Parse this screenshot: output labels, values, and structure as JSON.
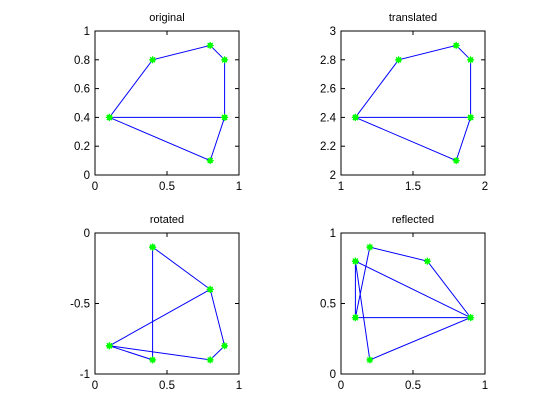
{
  "chart_data": [
    {
      "type": "line",
      "title": "original",
      "xlim": [
        0,
        1
      ],
      "ylim": [
        0,
        1
      ],
      "xticks": [
        0,
        0.5,
        1
      ],
      "xtick_labels": [
        "0",
        "0.5",
        "1"
      ],
      "yticks": [
        0,
        0.2,
        0.4,
        0.6,
        0.8,
        1
      ],
      "ytick_labels": [
        "0",
        "0.2",
        "0.4",
        "0.6",
        "0.8",
        "1"
      ],
      "x": [
        0.1,
        0.4,
        0.8,
        0.9,
        0.9,
        0.8,
        0.1,
        0.9,
        0.1
      ],
      "y": [
        0.4,
        0.8,
        0.9,
        0.8,
        0.4,
        0.1,
        0.4,
        0.4,
        0.4
      ]
    },
    {
      "type": "line",
      "title": "translated",
      "xlim": [
        1,
        2
      ],
      "ylim": [
        2,
        3
      ],
      "xticks": [
        1,
        1.5,
        2
      ],
      "xtick_labels": [
        "1",
        "1.5",
        "2"
      ],
      "yticks": [
        2,
        2.2,
        2.4,
        2.6,
        2.8,
        3
      ],
      "ytick_labels": [
        "2",
        "2.2",
        "2.4",
        "2.6",
        "2.8",
        "3"
      ],
      "x": [
        1.1,
        1.4,
        1.8,
        1.9,
        1.9,
        1.8,
        1.1,
        1.9,
        1.1
      ],
      "y": [
        2.4,
        2.8,
        2.9,
        2.8,
        2.4,
        2.1,
        2.4,
        2.4,
        2.4
      ]
    },
    {
      "type": "line",
      "title": "rotated",
      "xlim": [
        0,
        1
      ],
      "ylim": [
        -1,
        0
      ],
      "xticks": [
        0,
        0.5,
        1
      ],
      "xtick_labels": [
        "0",
        "0.5",
        "1"
      ],
      "yticks": [
        -1,
        -0.5,
        0
      ],
      "ytick_labels": [
        "-1",
        "-0.5",
        "0"
      ],
      "x": [
        0.1,
        0.8,
        0.4,
        0.4,
        0.1,
        0.8,
        0.9,
        0.8,
        0.4
      ],
      "y": [
        -0.8,
        -0.4,
        -0.1,
        -0.9,
        -0.8,
        -0.9,
        -0.8,
        -0.4,
        -0.1
      ]
    },
    {
      "type": "line",
      "title": "reflected",
      "xlim": [
        0,
        1
      ],
      "ylim": [
        0,
        1
      ],
      "xticks": [
        0,
        0.5,
        1
      ],
      "xtick_labels": [
        "0",
        "0.5",
        "1"
      ],
      "yticks": [
        0,
        0.5,
        1
      ],
      "ytick_labels": [
        "0",
        "0.5",
        "1"
      ],
      "x": [
        0.1,
        0.2,
        0.6,
        0.9,
        0.1,
        0.1,
        0.2,
        0.9,
        0.1
      ],
      "y": [
        0.4,
        0.9,
        0.8,
        0.4,
        0.4,
        0.8,
        0.1,
        0.4,
        0.8
      ]
    }
  ],
  "colors": {
    "line": "#0000ff",
    "marker": "#00ff00",
    "axes": "#000000",
    "background": "#ffffff"
  }
}
